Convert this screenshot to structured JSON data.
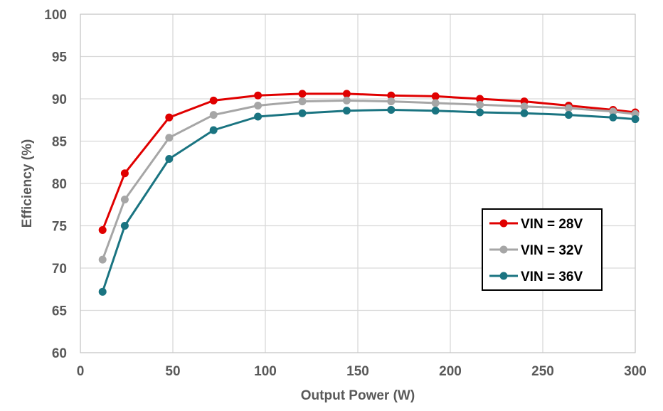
{
  "chart_data": {
    "type": "line",
    "title": "",
    "xlabel": "Output Power (W)",
    "ylabel": "Efficiency (%)",
    "xlim": [
      0,
      300
    ],
    "ylim": [
      60,
      100
    ],
    "x_ticks": [
      "0",
      "50",
      "100",
      "150",
      "200",
      "250",
      "300"
    ],
    "y_ticks": [
      "60",
      "65",
      "70",
      "75",
      "80",
      "85",
      "90",
      "95",
      "100"
    ],
    "grid": true,
    "legend_position": "bottom-right",
    "series": [
      {
        "name": "VIN = 28V",
        "color": "#e00000",
        "x": [
          12,
          24,
          48,
          72,
          96,
          120,
          144,
          168,
          192,
          216,
          240,
          264,
          288,
          300
        ],
        "y": [
          74.5,
          81.2,
          87.8,
          89.8,
          90.4,
          90.6,
          90.6,
          90.4,
          90.3,
          90.0,
          89.7,
          89.2,
          88.7,
          88.4
        ]
      },
      {
        "name": "VIN = 32V",
        "color": "#a6a6a6",
        "x": [
          12,
          24,
          48,
          72,
          96,
          120,
          144,
          168,
          192,
          216,
          240,
          264,
          288,
          300
        ],
        "y": [
          71.0,
          78.1,
          85.4,
          88.1,
          89.2,
          89.7,
          89.8,
          89.7,
          89.5,
          89.3,
          89.1,
          88.9,
          88.5,
          88.2
        ]
      },
      {
        "name": "VIN = 36V",
        "color": "#1a7481",
        "x": [
          12,
          24,
          48,
          72,
          96,
          120,
          144,
          168,
          192,
          216,
          240,
          264,
          288,
          300
        ],
        "y": [
          67.2,
          75.0,
          82.9,
          86.3,
          87.9,
          88.3,
          88.6,
          88.7,
          88.6,
          88.4,
          88.3,
          88.1,
          87.8,
          87.6
        ]
      }
    ]
  }
}
